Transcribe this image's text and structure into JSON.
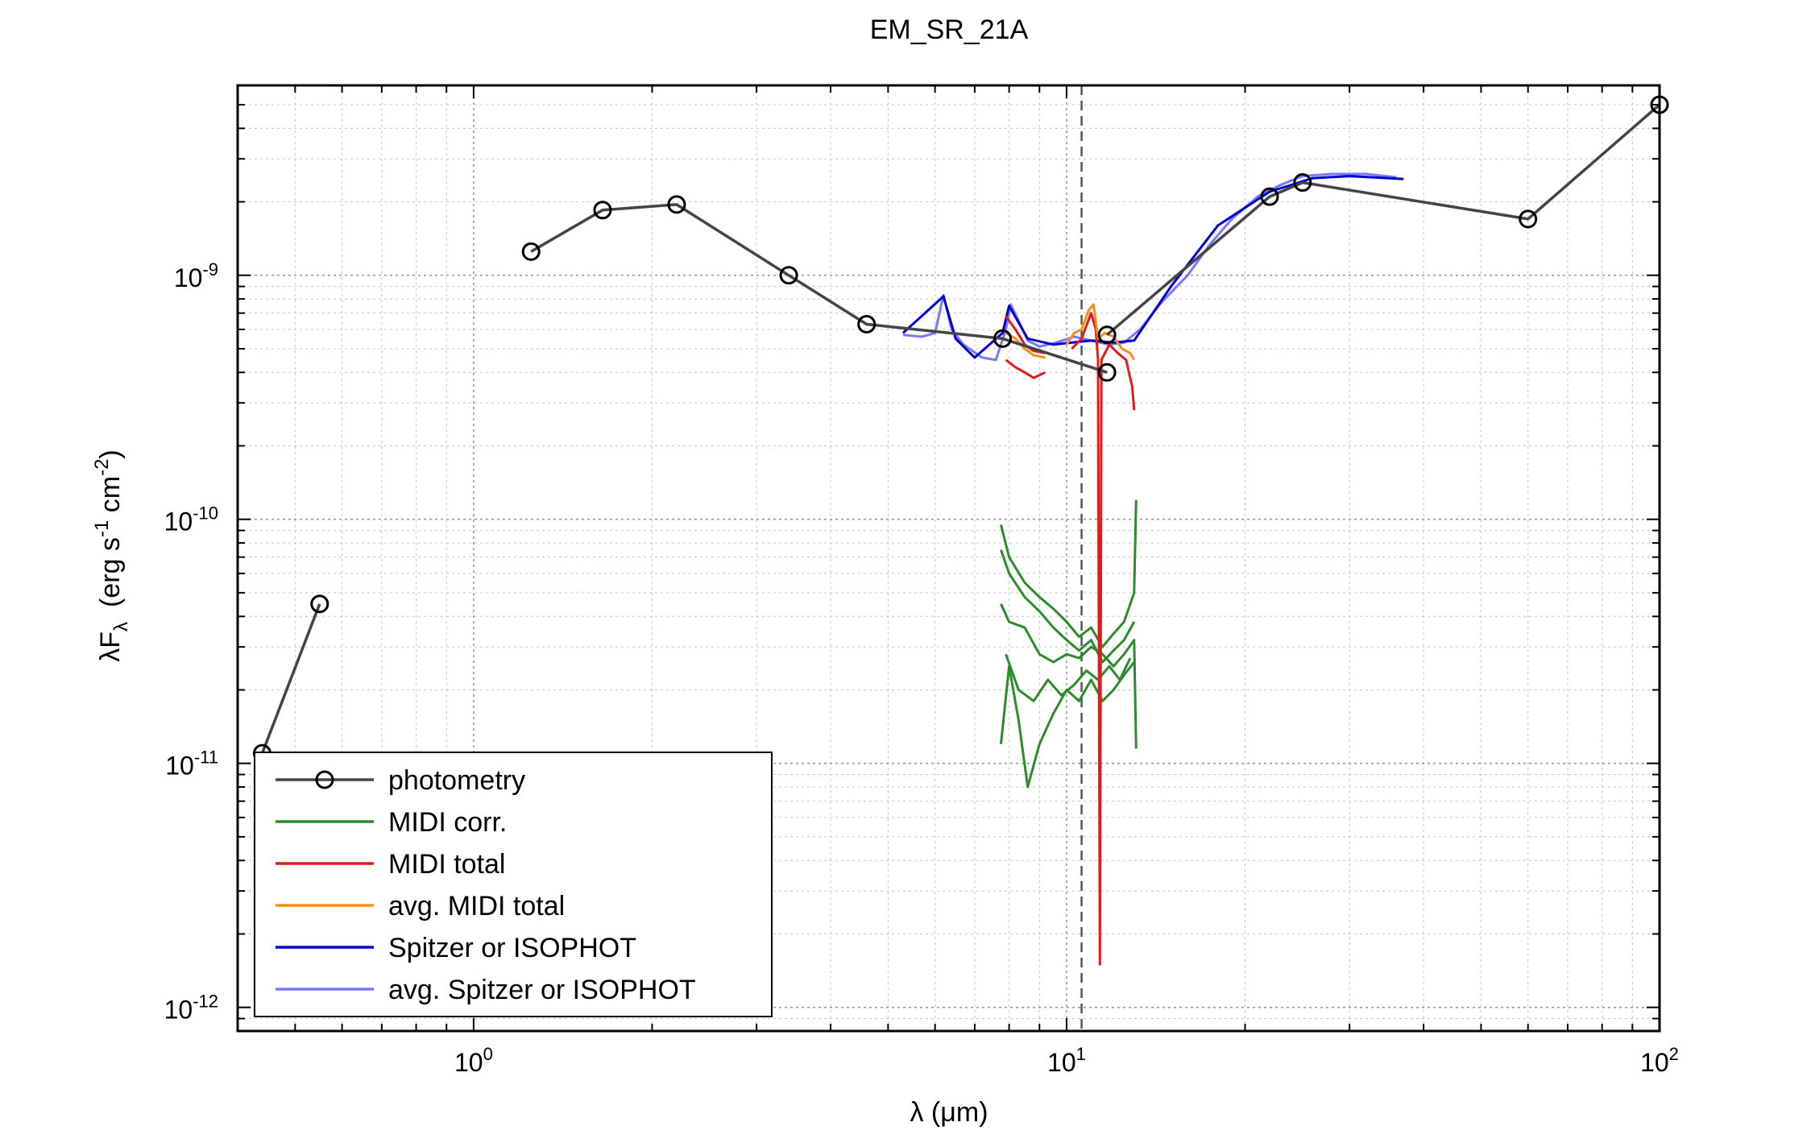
{
  "chart_data": {
    "type": "line",
    "title": "EM_SR_21A",
    "xlabel": {
      "main": "λ (",
      "unit": "μm",
      "close": ")"
    },
    "ylabel": {
      "lambda": "λF",
      "lambda_sub": "λ",
      "open": "(erg s",
      "exp1": "-1",
      "mid": " cm",
      "exp2": "-2",
      "close": ")"
    },
    "xscale": "log",
    "yscale": "log",
    "xlim": [
      0.4,
      100
    ],
    "ylim": [
      8e-13,
      6e-09
    ],
    "grid": true,
    "legend_position": "bottom-left",
    "x_ticks": [
      {
        "value": 1,
        "base": "10",
        "exp": "0"
      },
      {
        "value": 10,
        "base": "10",
        "exp": "1"
      },
      {
        "value": 100,
        "base": "10",
        "exp": "2"
      }
    ],
    "y_ticks": [
      {
        "value": 1e-09,
        "base": "10",
        "exp": "-9"
      },
      {
        "value": 1e-10,
        "base": "10",
        "exp": "-10"
      },
      {
        "value": 1e-11,
        "base": "10",
        "exp": "-11"
      },
      {
        "value": 1e-12,
        "base": "10",
        "exp": "-12"
      }
    ],
    "vline": {
      "x": 10.6,
      "style": "dashed",
      "color": "#555555"
    },
    "series": [
      {
        "name": "photometry",
        "color": "#444444",
        "marker": "circle",
        "segments": [
          [
            [
              0.44,
              1.1e-11
            ],
            [
              0.55,
              4.5e-11
            ]
          ],
          [
            [
              1.25,
              1.25e-09
            ],
            [
              1.65,
              1.85e-09
            ],
            [
              2.2,
              1.95e-09
            ],
            [
              3.4,
              1e-09
            ],
            [
              4.6,
              6.3e-10
            ],
            [
              7.8,
              5.5e-10
            ],
            [
              11.7,
              4e-10
            ]
          ],
          [
            [
              11.7,
              5.7e-10
            ],
            [
              22.0,
              2.1e-09
            ],
            [
              25.0,
              2.4e-09
            ],
            [
              60.0,
              1.7e-09
            ],
            [
              100.0,
              5e-09
            ]
          ]
        ]
      },
      {
        "name": "MIDI corr.",
        "color": "#2a8c2a",
        "marker": "none",
        "curves": [
          [
            [
              7.75,
              9.5e-11
            ],
            [
              8.0,
              7e-11
            ],
            [
              8.5,
              5.5e-11
            ],
            [
              9.0,
              4.8e-11
            ],
            [
              9.5,
              4.3e-11
            ],
            [
              10.0,
              3.8e-11
            ],
            [
              10.5,
              3.3e-11
            ],
            [
              11.0,
              3.6e-11
            ],
            [
              11.5,
              3e-11
            ],
            [
              12.0,
              3.4e-11
            ],
            [
              12.5,
              3.8e-11
            ],
            [
              13.0,
              5e-11
            ],
            [
              13.1,
              1.2e-10
            ]
          ],
          [
            [
              7.75,
              7.5e-11
            ],
            [
              8.0,
              6e-11
            ],
            [
              8.5,
              4.8e-11
            ],
            [
              9.0,
              4.2e-11
            ],
            [
              9.5,
              3.6e-11
            ],
            [
              10.0,
              3.2e-11
            ],
            [
              10.5,
              2.9e-11
            ],
            [
              11.0,
              3.2e-11
            ],
            [
              11.5,
              2.6e-11
            ],
            [
              12.0,
              2.9e-11
            ],
            [
              12.5,
              3.2e-11
            ],
            [
              13.0,
              3.8e-11
            ]
          ],
          [
            [
              7.75,
              4.5e-11
            ],
            [
              8.0,
              3.8e-11
            ],
            [
              8.5,
              3.6e-11
            ],
            [
              9.0,
              2.8e-11
            ],
            [
              9.5,
              2.6e-11
            ],
            [
              10.0,
              2.8e-11
            ],
            [
              10.5,
              2.7e-11
            ],
            [
              11.0,
              3e-11
            ],
            [
              11.5,
              2.8e-11
            ],
            [
              12.0,
              2.5e-11
            ],
            [
              12.5,
              2.8e-11
            ],
            [
              13.0,
              3.2e-11
            ],
            [
              13.1,
              1.15e-11
            ]
          ],
          [
            [
              7.75,
              1.2e-11
            ],
            [
              8.0,
              2.5e-11
            ],
            [
              8.3,
              1.5e-11
            ],
            [
              8.6,
              8e-12
            ],
            [
              9.0,
              1.2e-11
            ],
            [
              9.5,
              1.6e-11
            ],
            [
              10.0,
              2e-11
            ],
            [
              10.5,
              1.8e-11
            ],
            [
              11.0,
              2.2e-11
            ],
            [
              11.5,
              1.8e-11
            ],
            [
              12.0,
              2e-11
            ],
            [
              12.5,
              2.3e-11
            ],
            [
              13.0,
              2.6e-11
            ]
          ],
          [
            [
              7.9,
              2.8e-11
            ],
            [
              8.3,
              2e-11
            ],
            [
              8.8,
              1.8e-11
            ],
            [
              9.3,
              2.2e-11
            ],
            [
              9.8,
              1.9e-11
            ],
            [
              10.3,
              2.1e-11
            ],
            [
              10.8,
              2.4e-11
            ],
            [
              11.3,
              2.2e-11
            ],
            [
              11.8,
              2.5e-11
            ],
            [
              12.3,
              2.2e-11
            ],
            [
              12.8,
              2.7e-11
            ]
          ]
        ]
      },
      {
        "name": "MIDI total",
        "color": "#e41a1a",
        "marker": "none",
        "curves": [
          [
            [
              7.9,
              6.8e-10
            ],
            [
              8.2,
              6e-10
            ],
            [
              8.5,
              5.2e-10
            ],
            [
              8.8,
              4.9e-10
            ],
            [
              9.2,
              4.8e-10
            ]
          ],
          [
            [
              7.9,
              4.5e-10
            ],
            [
              8.2,
              4.2e-10
            ],
            [
              8.5,
              4e-10
            ],
            [
              8.8,
              3.8e-10
            ],
            [
              9.2,
              4e-10
            ]
          ],
          [
            [
              10.2,
              5e-10
            ],
            [
              10.6,
              5.5e-10
            ],
            [
              11.0,
              7e-10
            ],
            [
              11.2,
              6e-10
            ],
            [
              11.3,
              4.5e-10
            ],
            [
              11.38,
              1.5e-12
            ],
            [
              11.45,
              4.5e-10
            ],
            [
              11.8,
              5.2e-10
            ],
            [
              12.2,
              4.8e-10
            ],
            [
              12.6,
              4.5e-10
            ],
            [
              12.9,
              3.5e-10
            ],
            [
              13.0,
              2.8e-10
            ]
          ]
        ]
      },
      {
        "name": "avg. MIDI total",
        "color": "#ff8c1a",
        "marker": "none",
        "curves": [
          [
            [
              7.9,
              5.8e-10
            ],
            [
              8.2,
              5.5e-10
            ],
            [
              8.5,
              5e-10
            ],
            [
              8.8,
              4.7e-10
            ],
            [
              9.2,
              4.6e-10
            ]
          ],
          [
            [
              10.0,
              5.2e-10
            ],
            [
              10.3,
              5.8e-10
            ],
            [
              10.6,
              6e-10
            ],
            [
              10.9,
              7.2e-10
            ],
            [
              11.1,
              7.6e-10
            ],
            [
              11.3,
              5.5e-10
            ],
            [
              11.6,
              5.8e-10
            ],
            [
              12.0,
              5.6e-10
            ],
            [
              12.4,
              5e-10
            ],
            [
              12.8,
              4.8e-10
            ],
            [
              13.0,
              4.5e-10
            ]
          ]
        ]
      },
      {
        "name": "Spitzer or ISOPHOT",
        "color": "#0000cc",
        "marker": "none",
        "curves": [
          [
            [
              5.3,
              5.8e-10
            ],
            [
              6.2,
              8.2e-10
            ],
            [
              6.5,
              5.5e-10
            ],
            [
              7.0,
              4.6e-10
            ],
            [
              7.8,
              5.8e-10
            ],
            [
              8.0,
              7.5e-10
            ],
            [
              8.6,
              5.5e-10
            ],
            [
              9.5,
              5.2e-10
            ],
            [
              11.0,
              5.4e-10
            ],
            [
              12.0,
              5.3e-10
            ],
            [
              13.0,
              5.4e-10
            ],
            [
              15.0,
              9e-10
            ],
            [
              18.0,
              1.6e-09
            ],
            [
              22.0,
              2.2e-09
            ],
            [
              26.0,
              2.5e-09
            ],
            [
              30.0,
              2.55e-09
            ],
            [
              35.0,
              2.5e-09
            ],
            [
              37.0,
              2.48e-09
            ]
          ]
        ]
      },
      {
        "name": "avg. Spitzer or ISOPHOT",
        "color": "#7878ff",
        "marker": "none",
        "curves": [
          [
            [
              5.3,
              5.7e-10
            ],
            [
              5.7,
              5.6e-10
            ],
            [
              6.0,
              5.8e-10
            ],
            [
              6.2,
              8.3e-10
            ],
            [
              6.4,
              6e-10
            ],
            [
              6.7,
              5.2e-10
            ],
            [
              7.2,
              4.6e-10
            ],
            [
              7.6,
              4.5e-10
            ],
            [
              7.9,
              6e-10
            ],
            [
              8.05,
              7.6e-10
            ],
            [
              8.3,
              6.5e-10
            ],
            [
              8.6,
              5.4e-10
            ],
            [
              9.0,
              5.1e-10
            ],
            [
              9.6,
              5.3e-10
            ],
            [
              10.3,
              5.6e-10
            ],
            [
              11.0,
              5.4e-10
            ],
            [
              11.8,
              5.2e-10
            ],
            [
              12.5,
              5.3e-10
            ],
            [
              13.3,
              6e-10
            ],
            [
              14.5,
              7.8e-10
            ],
            [
              16.0,
              1e-09
            ],
            [
              17.5,
              1.35e-09
            ],
            [
              19.0,
              1.7e-09
            ],
            [
              21.0,
              2.1e-09
            ],
            [
              23.0,
              2.35e-09
            ],
            [
              25.0,
              2.55e-09
            ],
            [
              28.0,
              2.6e-09
            ],
            [
              32.0,
              2.6e-09
            ],
            [
              36.0,
              2.52e-09
            ]
          ]
        ]
      }
    ]
  }
}
